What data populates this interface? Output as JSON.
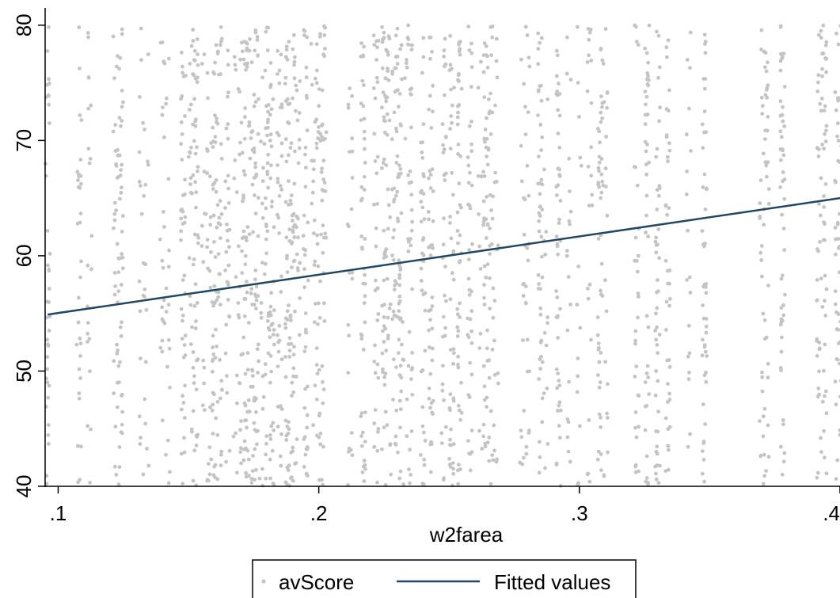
{
  "chart_data": {
    "type": "scatter",
    "xlabel": "w2farea",
    "ylabel": "",
    "xlim": [
      0.095,
      0.4
    ],
    "ylim": [
      40,
      81.5
    ],
    "x_ticks": [
      {
        "value": 0.1,
        "label": ".1"
      },
      {
        "value": 0.2,
        "label": ".2"
      },
      {
        "value": 0.3,
        "label": ".3"
      },
      {
        "value": 0.4,
        "label": ".4"
      }
    ],
    "y_ticks": [
      {
        "value": 40,
        "label": "40"
      },
      {
        "value": 50,
        "label": "50"
      },
      {
        "value": 60,
        "label": "60"
      },
      {
        "value": 70,
        "label": "70"
      },
      {
        "value": 80,
        "label": "80"
      }
    ],
    "grid": false,
    "legend_position": "bottom",
    "series": [
      {
        "name": "avScore",
        "kind": "scatter",
        "color": "#c4c4c4",
        "x_columns": [
          0.096,
          0.108,
          0.112,
          0.122,
          0.124,
          0.132,
          0.134,
          0.14,
          0.142,
          0.148,
          0.151,
          0.153,
          0.156,
          0.158,
          0.16,
          0.162,
          0.165,
          0.168,
          0.17,
          0.172,
          0.174,
          0.176,
          0.178,
          0.18,
          0.182,
          0.185,
          0.188,
          0.19,
          0.192,
          0.195,
          0.198,
          0.2,
          0.202,
          0.212,
          0.217,
          0.222,
          0.225,
          0.227,
          0.229,
          0.231,
          0.233,
          0.235,
          0.24,
          0.243,
          0.248,
          0.251,
          0.254,
          0.258,
          0.262,
          0.264,
          0.266,
          0.268,
          0.278,
          0.28,
          0.285,
          0.287,
          0.292,
          0.296,
          0.3,
          0.304,
          0.308,
          0.31,
          0.322,
          0.326,
          0.33,
          0.334,
          0.342,
          0.348,
          0.37,
          0.372,
          0.378,
          0.392,
          0.394,
          0.399,
          0.4
        ],
        "y_range": [
          40,
          80
        ]
      },
      {
        "name": "Fitted values",
        "kind": "line",
        "color": "#1f4766",
        "x": [
          0.096,
          0.4
        ],
        "y": [
          54.9,
          65.0
        ]
      }
    ]
  },
  "colors": {
    "axis": "#000000",
    "points": "#c4c4c4",
    "fit_line": "#1f4766"
  }
}
